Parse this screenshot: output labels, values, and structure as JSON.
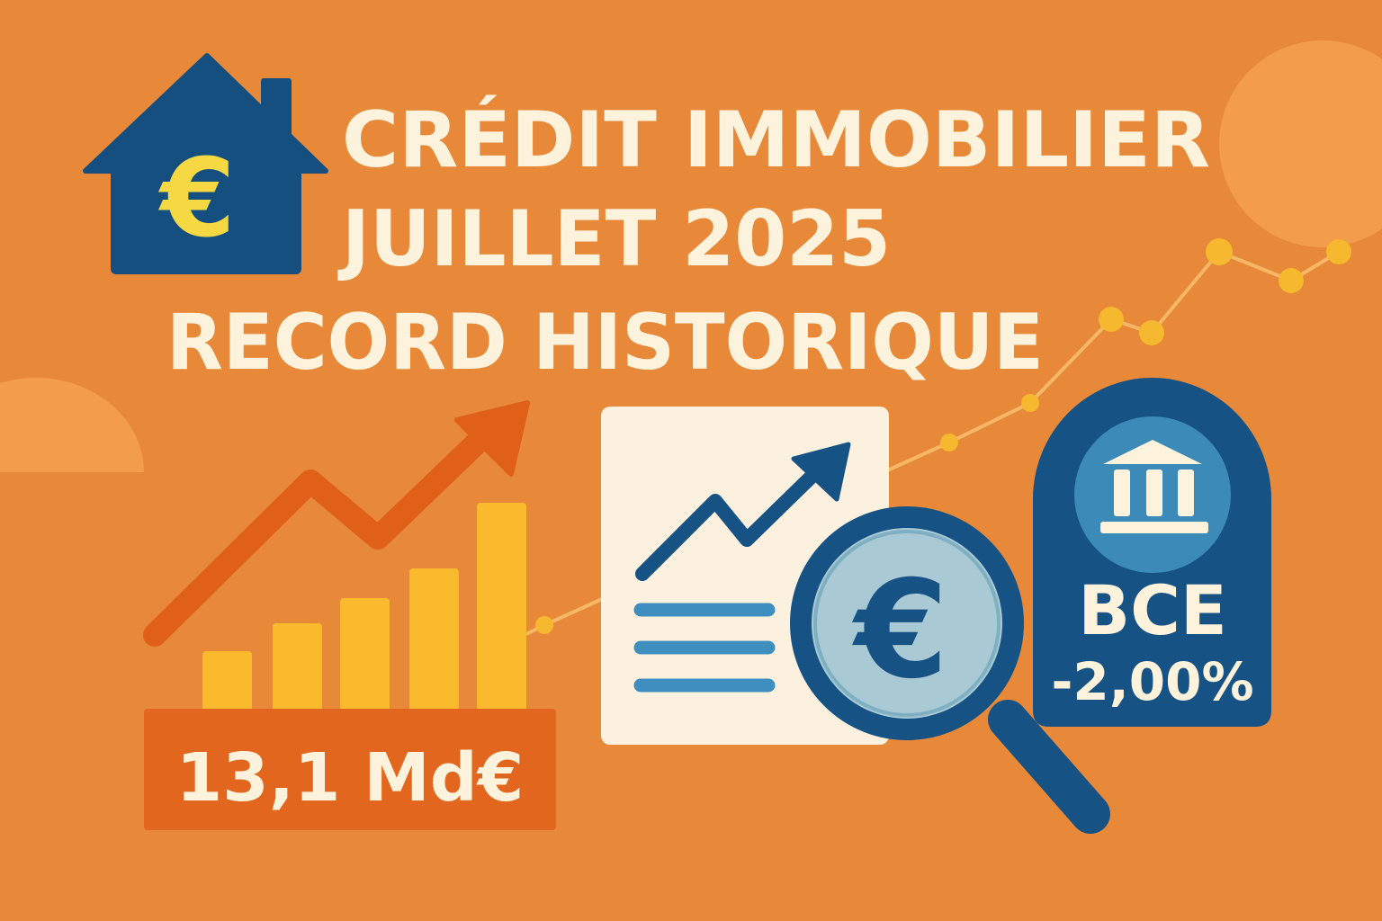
{
  "title": {
    "line1": "CRÉDIT IMMOBILIER",
    "line2": "JUILLET 2025",
    "line3": "RECORD HISTORIQUE"
  },
  "house_icon": {
    "icon": "house-euro-icon",
    "symbol": "€"
  },
  "amount_badge": {
    "value": "13,1 Md€"
  },
  "document": {
    "icon": "document-chart-icon"
  },
  "magnifier": {
    "icon": "magnifier-euro-icon",
    "symbol": "€"
  },
  "bce_badge": {
    "icon": "bank-icon",
    "label": "BCE",
    "rate": "-2,00%"
  },
  "colors": {
    "background": "#E8893A",
    "title_text": "#FDF3DC",
    "navy": "#165284",
    "yellow": "#F9BA2E",
    "orange_dark": "#E0601A",
    "light_blue": "#3C8AB8"
  }
}
